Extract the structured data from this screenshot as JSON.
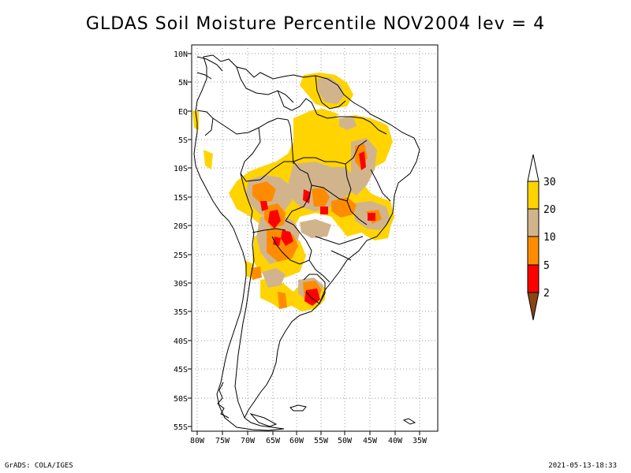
{
  "title": "GLDAS Soil Moisture Percentile NOV2004 lev = 4",
  "footer": {
    "left": "GrADS: COLA/IGES",
    "right": "2021-05-13-18:33"
  },
  "axes": {
    "lat_labels": [
      "10N",
      "5N",
      "EQ",
      "5S",
      "10S",
      "15S",
      "20S",
      "25S",
      "30S",
      "35S",
      "40S",
      "45S",
      "50S",
      "55S"
    ],
    "lon_labels": [
      "80W",
      "75W",
      "70W",
      "65W",
      "60W",
      "55W",
      "50W",
      "45W",
      "40W",
      "35W"
    ],
    "lat_range": [
      -56,
      11
    ],
    "lon_range": [
      -81,
      -33
    ]
  },
  "legend": {
    "labels": [
      "30",
      "20",
      "10",
      "5",
      "2"
    ],
    "colors": {
      "above_30": "#ffffff",
      "20_30": "#ffd400",
      "10_20": "#d2b48c",
      "5_10": "#ff8c00",
      "2_5": "#ff0000",
      "below_2": "#8b4513"
    }
  }
}
